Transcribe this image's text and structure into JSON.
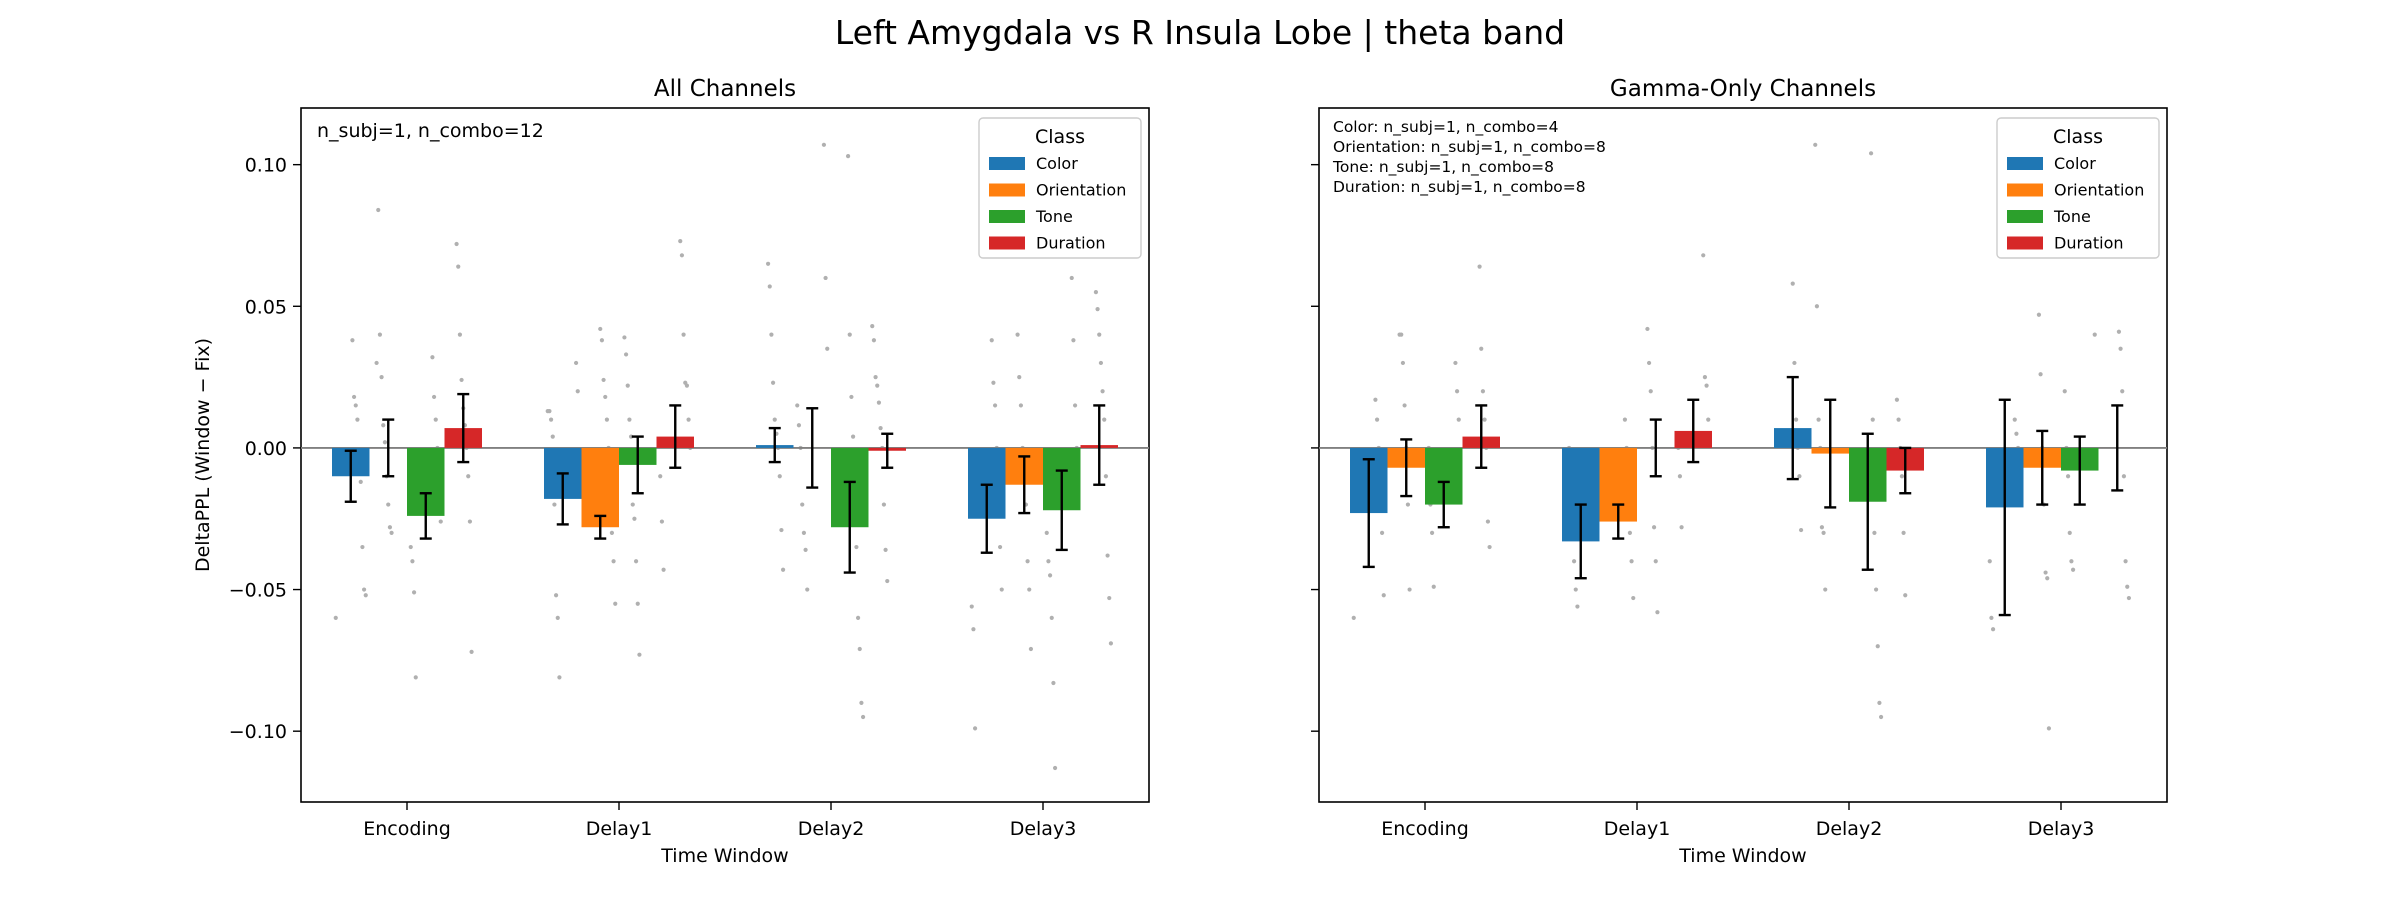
{
  "figure": {
    "suptitle": "Left Amygdala vs R Insula Lobe  |  theta band"
  },
  "colors": {
    "Color": "#1f77b4",
    "Orientation": "#ff7f0e",
    "Tone": "#2ca02c",
    "Duration": "#d62728",
    "dots": "#b0b0b0",
    "zero_line": "#808080",
    "errorbar": "#000000"
  },
  "chart_data": [
    {
      "type": "bar",
      "title": "All Channels",
      "xlabel": "Time Window",
      "ylabel": "DeltaPPL (Window − Fix)",
      "ylim": [
        -0.125,
        0.12
      ],
      "yticks": [
        0.1,
        0.05,
        0.0,
        -0.05,
        -0.1
      ],
      "ytick_labels": [
        "0.10",
        "0.05",
        "0.00",
        "−0.05",
        "−0.10"
      ],
      "categories": [
        "Encoding",
        "Delay1",
        "Delay2",
        "Delay3"
      ],
      "legend_title": "Class",
      "legend_position": "top-right",
      "annotation": [
        "n_subj=1, n_combo=12"
      ],
      "series": [
        {
          "name": "Color",
          "values": [
            -0.01,
            -0.018,
            0.001,
            -0.025
          ],
          "err": [
            0.009,
            0.009,
            0.006,
            0.012
          ]
        },
        {
          "name": "Orientation",
          "values": [
            0.0,
            -0.028,
            0.0,
            -0.013
          ],
          "err": [
            0.01,
            0.004,
            0.014,
            0.01
          ]
        },
        {
          "name": "Tone",
          "values": [
            -0.024,
            -0.006,
            -0.028,
            -0.022
          ],
          "err": [
            0.008,
            0.01,
            0.016,
            0.014
          ]
        },
        {
          "name": "Duration",
          "values": [
            0.007,
            0.004,
            -0.001,
            0.001
          ],
          "err": [
            0.012,
            0.011,
            0.006,
            0.014
          ]
        }
      ],
      "points": [
        [
          [
            -0.06,
            -0.052,
            -0.05,
            -0.035,
            -0.012,
            -0.008,
            0.01,
            0.015,
            0.018,
            0.038
          ],
          [
            -0.03,
            -0.028,
            -0.02,
            -0.01,
            0.002,
            0.008,
            0.025,
            0.04,
            0.084,
            0.03
          ],
          [
            -0.081,
            -0.051,
            -0.04,
            -0.035,
            -0.026,
            -0.015,
            0.0,
            0.01,
            0.018,
            0.032
          ],
          [
            -0.072,
            -0.026,
            -0.01,
            0.0,
            0.008,
            0.014,
            0.024,
            0.04,
            0.064,
            0.072
          ]
        ],
        [
          [
            -0.081,
            -0.06,
            -0.052,
            -0.02,
            0.004,
            0.01,
            0.013,
            0.013,
            0.02,
            0.03
          ],
          [
            -0.055,
            -0.04,
            -0.03,
            -0.015,
            0.0,
            0.01,
            0.018,
            0.024,
            0.038,
            0.042
          ],
          [
            -0.073,
            -0.055,
            -0.04,
            -0.025,
            -0.02,
            0.004,
            0.01,
            0.022,
            0.033,
            0.039
          ],
          [
            -0.043,
            -0.026,
            -0.01,
            0.0,
            0.01,
            0.022,
            0.023,
            0.04,
            0.068,
            0.073
          ]
        ],
        [
          [
            -0.043,
            -0.029,
            -0.01,
            0.0,
            0.005,
            0.01,
            0.023,
            0.04,
            0.057,
            0.065
          ],
          [
            -0.05,
            -0.036,
            -0.03,
            -0.02,
            0.0,
            0.008,
            0.015,
            0.035,
            0.06,
            0.107
          ],
          [
            -0.095,
            -0.09,
            -0.071,
            -0.06,
            -0.035,
            -0.02,
            0.004,
            0.018,
            0.04,
            0.103
          ],
          [
            -0.047,
            -0.036,
            -0.02,
            0.0,
            0.007,
            0.016,
            0.022,
            0.025,
            0.038,
            0.043
          ]
        ],
        [
          [
            -0.099,
            -0.064,
            -0.056,
            -0.05,
            -0.035,
            -0.02,
            0.0,
            0.015,
            0.023,
            0.038
          ],
          [
            -0.071,
            -0.05,
            -0.04,
            -0.02,
            -0.005,
            0.0,
            0.015,
            0.025,
            0.04,
            0.074
          ],
          [
            -0.113,
            -0.083,
            -0.06,
            -0.045,
            -0.04,
            -0.03,
            0.0,
            0.015,
            0.038,
            0.06
          ],
          [
            -0.069,
            -0.053,
            -0.038,
            -0.01,
            0.01,
            0.02,
            0.03,
            0.04,
            0.049,
            0.055
          ]
        ]
      ]
    },
    {
      "type": "bar",
      "title": "Gamma-Only Channels",
      "xlabel": "Time Window",
      "ylabel": "",
      "ylim": [
        -0.125,
        0.12
      ],
      "yticks": [
        0.1,
        0.05,
        0.0,
        -0.05,
        -0.1
      ],
      "ytick_labels": [],
      "categories": [
        "Encoding",
        "Delay1",
        "Delay2",
        "Delay3"
      ],
      "legend_title": "Class",
      "legend_position": "top-right",
      "annotation": [
        "Color: n_subj=1, n_combo=4",
        "Orientation: n_subj=1, n_combo=8",
        "Tone: n_subj=1, n_combo=8",
        "Duration: n_subj=1, n_combo=8"
      ],
      "series": [
        {
          "name": "Color",
          "values": [
            -0.023,
            -0.033,
            0.007,
            -0.021
          ],
          "err": [
            0.019,
            0.013,
            0.018,
            0.038
          ]
        },
        {
          "name": "Orientation",
          "values": [
            -0.007,
            -0.026,
            -0.002,
            -0.007
          ],
          "err": [
            0.01,
            0.006,
            0.019,
            0.013
          ]
        },
        {
          "name": "Tone",
          "values": [
            -0.02,
            0.0,
            -0.019,
            -0.008
          ],
          "err": [
            0.008,
            0.01,
            0.024,
            0.012
          ]
        },
        {
          "name": "Duration",
          "values": [
            0.004,
            0.006,
            -0.008,
            0.0
          ],
          "err": [
            0.011,
            0.011,
            0.008,
            0.015
          ]
        }
      ],
      "points": [
        [
          [
            -0.06,
            -0.052,
            -0.03,
            -0.01,
            0.0,
            0.01,
            0.017
          ],
          [
            -0.05,
            -0.02,
            0.0,
            0.015,
            0.03,
            0.04,
            0.04
          ],
          [
            -0.049,
            -0.03,
            -0.02,
            0.0,
            0.01,
            0.02,
            0.03
          ],
          [
            -0.035,
            -0.026,
            0.0,
            0.01,
            0.02,
            0.035,
            0.064
          ]
        ],
        [
          [
            -0.056,
            -0.05,
            -0.04,
            -0.03,
            -0.01,
            0.0
          ],
          [
            -0.053,
            -0.04,
            -0.03,
            -0.02,
            0.0,
            0.01
          ],
          [
            -0.058,
            -0.04,
            -0.028,
            0.0,
            0.02,
            0.03,
            0.042
          ],
          [
            -0.028,
            -0.01,
            0.0,
            0.01,
            0.022,
            0.025,
            0.068
          ]
        ],
        [
          [
            -0.029,
            -0.01,
            0.0,
            0.01,
            0.03,
            0.058
          ],
          [
            -0.05,
            -0.03,
            -0.028,
            0.0,
            0.01,
            0.05,
            0.107
          ],
          [
            -0.095,
            -0.09,
            -0.07,
            -0.05,
            -0.03,
            0.01,
            0.104
          ],
          [
            -0.052,
            -0.03,
            -0.01,
            0.0,
            0.01,
            0.017
          ]
        ],
        [
          [
            -0.064,
            -0.06,
            -0.04,
            -0.01,
            0.0,
            0.005,
            0.01
          ],
          [
            -0.099,
            -0.046,
            -0.044,
            -0.02,
            0.0,
            0.026,
            0.047
          ],
          [
            -0.043,
            -0.04,
            -0.03,
            -0.01,
            0.0,
            0.02,
            0.04
          ],
          [
            -0.053,
            -0.049,
            -0.04,
            -0.01,
            0.02,
            0.035,
            0.041
          ]
        ]
      ]
    }
  ]
}
